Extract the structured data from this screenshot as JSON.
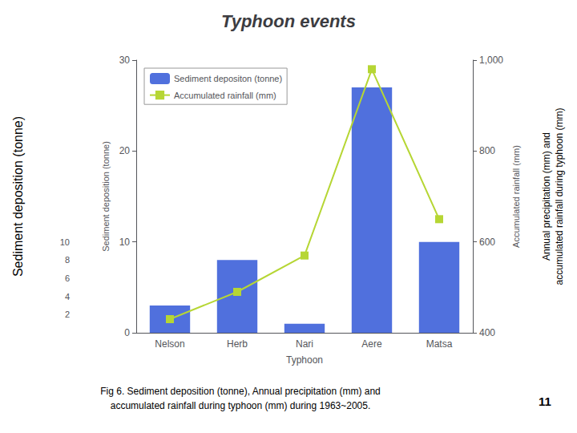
{
  "chart_data": {
    "type": "bar",
    "title": "Typhoon events",
    "categories": [
      "Nelson",
      "Herb",
      "Nari",
      "Aere",
      "Matsa"
    ],
    "xlabel": "Typhoon",
    "ylabel": "Sediment deposition (tonne)",
    "y2label": "Accumulated rainfall (mm)",
    "ylim": [
      0,
      30
    ],
    "yticks": [
      0,
      10,
      20,
      30
    ],
    "y2lim": [
      400,
      1000
    ],
    "y2ticks": [
      400,
      600,
      800,
      1000
    ],
    "outer_yticks": [
      2,
      4,
      6,
      8,
      10
    ],
    "series": [
      {
        "name": "Sediment depositon (tonne)",
        "type": "bar",
        "values": [
          3,
          8,
          1,
          27,
          10
        ]
      },
      {
        "name": "Accumulated rainfall (mm)",
        "type": "line",
        "marker": "square",
        "axis": "y2",
        "values": [
          430,
          490,
          570,
          980,
          650
        ]
      }
    ],
    "legend": "upper left",
    "grid": false,
    "annotations": {
      "left_label": "Sediment deposition (tonne)",
      "far_right": "Annual precipitation (mm) and\naccumulated rainfall during typhoon (mm)",
      "caption": [
        "Fig 6. Sediment deposition (tonne), Annual precipitation (mm) and",
        "accumulated rainfall during typhoon (mm) during 1963~2005."
      ],
      "slide_number": "11"
    }
  }
}
